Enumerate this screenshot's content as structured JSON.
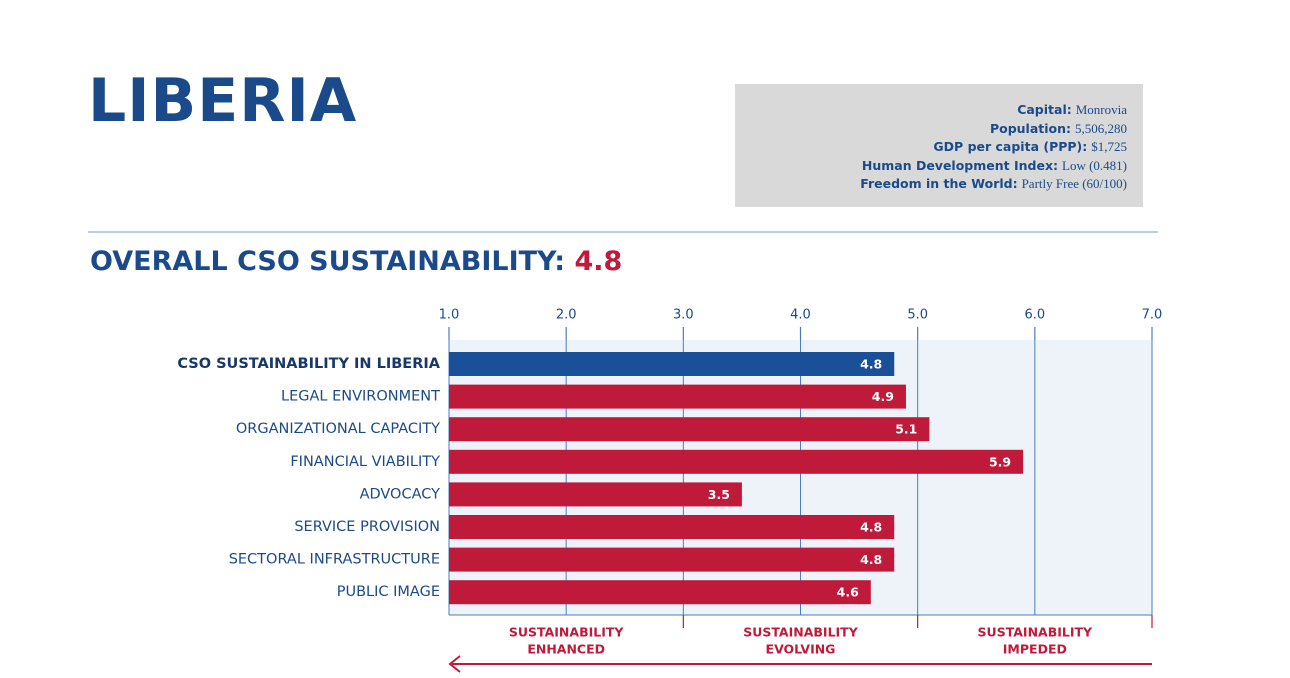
{
  "header": {
    "country": "LIBERIA"
  },
  "info": [
    {
      "label": "Capital:",
      "value": "Monrovia"
    },
    {
      "label": "Population:",
      "value": "5,506,280"
    },
    {
      "label": "GDP per capita (PPP):",
      "value": "$1,725"
    },
    {
      "label": "Human Development Index:",
      "value": "Low (0.481)"
    },
    {
      "label": "Freedom in the World:",
      "value": "Partly Free (60/100)"
    }
  ],
  "heading": {
    "text": "OVERALL CSO SUSTAINABILITY:",
    "score": 4.8
  },
  "chart_data": {
    "type": "bar",
    "orientation": "horizontal",
    "categories": [
      "CSO SUSTAINABILITY IN LIBERIA",
      "LEGAL ENVIRONMENT",
      "ORGANIZATIONAL CAPACITY",
      "FINANCIAL VIABILITY",
      "ADVOCACY",
      "SERVICE PROVISION",
      "SECTORAL INFRASTRUCTURE",
      "PUBLIC IMAGE"
    ],
    "values": [
      4.8,
      4.9,
      5.1,
      5.9,
      3.5,
      4.8,
      4.8,
      4.6
    ],
    "colors": [
      "#1a5097",
      "#c01a3a",
      "#c01a3a",
      "#c01a3a",
      "#c01a3a",
      "#c01a3a",
      "#c01a3a",
      "#c01a3a"
    ],
    "xlim": [
      1,
      7
    ],
    "xticks": [
      {
        "value": 1,
        "label": "1.0"
      },
      {
        "value": 2,
        "label": "2.0"
      },
      {
        "value": 3,
        "label": "3.0"
      },
      {
        "value": 4,
        "label": "4.0"
      },
      {
        "value": 5,
        "label": "5.0"
      },
      {
        "value": 6,
        "label": "6.0"
      },
      {
        "value": 7,
        "label": "7.0"
      }
    ],
    "grid": true,
    "zones": [
      {
        "range": [
          1,
          3
        ],
        "lines": [
          "SUSTAINABILITY",
          "ENHANCED"
        ]
      },
      {
        "range": [
          3,
          5
        ],
        "lines": [
          "SUSTAINABILITY",
          "EVOLVING"
        ]
      },
      {
        "range": [
          5,
          7
        ],
        "lines": [
          "SUSTAINABILITY",
          "IMPEDED"
        ]
      }
    ]
  }
}
